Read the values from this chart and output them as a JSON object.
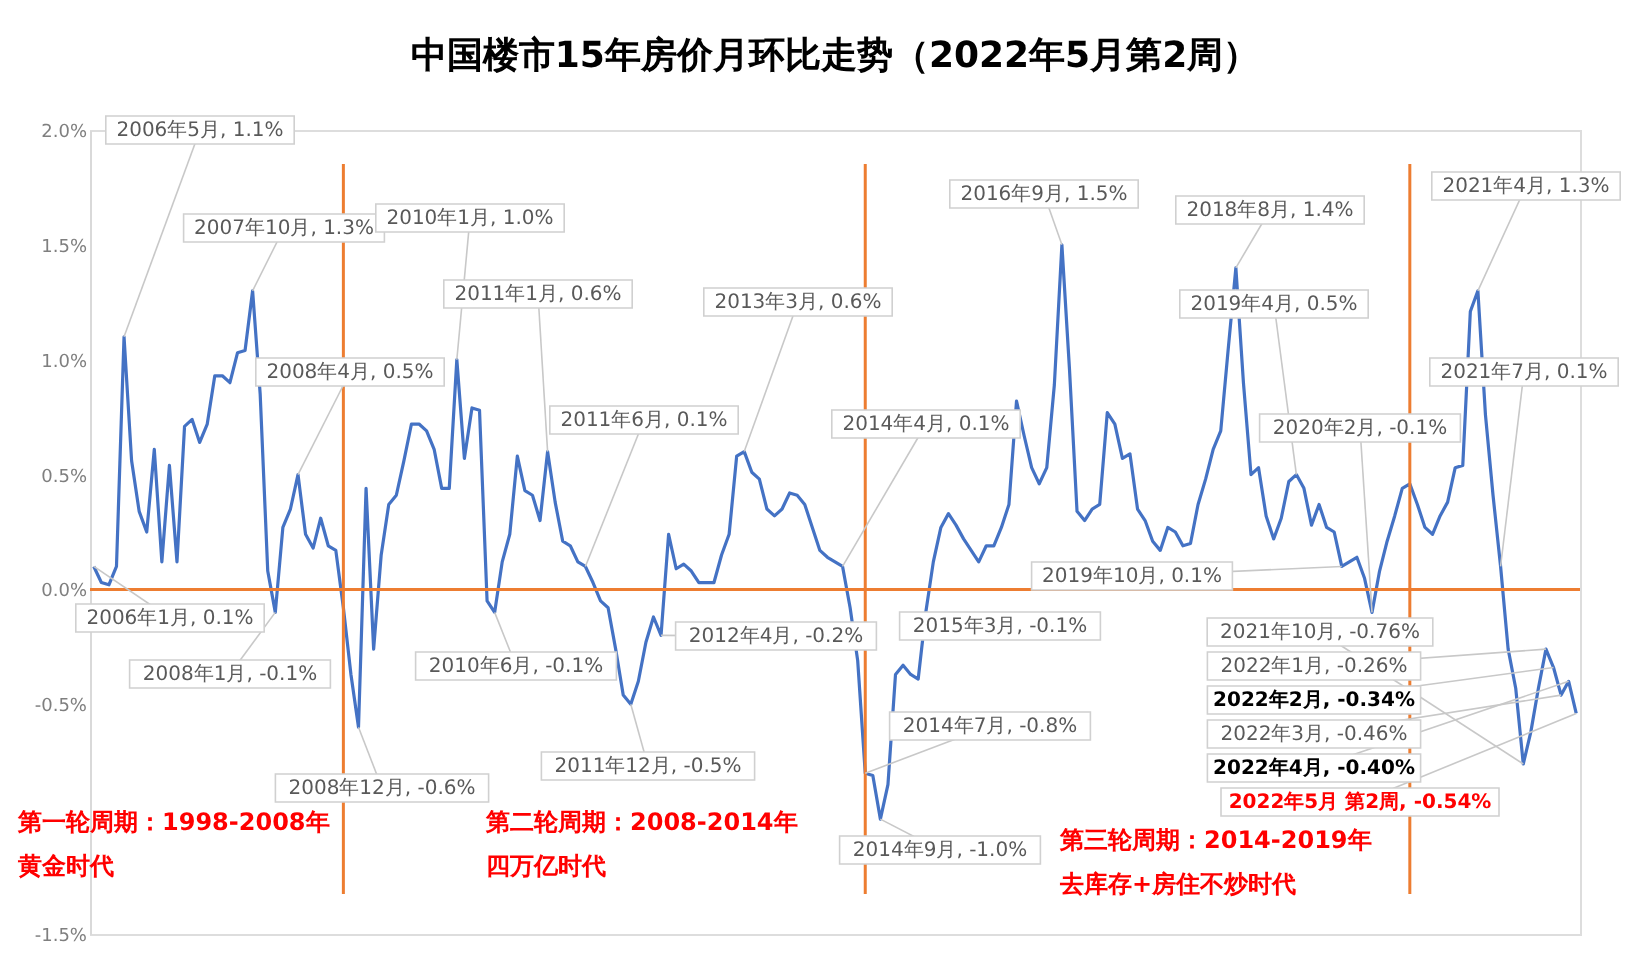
{
  "chart_data": {
    "type": "line",
    "title": "中国楼市15年房价月环比走势（2022年5月第2周）",
    "categories": [
      null,
      null,
      null,
      null,
      null,
      null,
      null,
      null,
      null,
      null,
      null,
      null,
      null,
      null,
      null,
      null,
      null,
      null,
      null,
      null,
      null,
      null,
      null,
      null,
      null,
      null,
      null,
      null,
      null,
      null,
      null,
      null,
      null,
      null,
      null,
      null,
      null,
      null,
      null,
      null,
      null,
      null,
      null,
      null,
      null,
      null,
      null,
      null,
      null,
      null,
      null,
      null,
      null,
      null,
      null,
      null,
      null,
      null,
      null,
      null,
      null,
      null,
      null,
      null,
      null,
      null,
      null,
      null,
      null,
      null,
      null,
      null,
      null,
      null,
      null,
      null,
      null,
      null,
      null,
      null,
      null,
      null,
      null,
      null,
      null,
      null,
      null,
      null,
      null,
      null,
      null,
      null,
      null,
      null,
      null,
      null,
      null,
      null,
      null,
      null,
      null,
      null,
      null,
      null,
      null,
      null,
      null,
      null,
      null,
      null,
      null,
      null,
      null,
      null,
      null,
      null,
      null,
      null,
      null,
      null,
      null,
      null,
      null,
      null,
      null,
      null,
      null,
      null,
      null,
      null,
      null,
      null,
      null,
      null,
      null,
      null,
      null,
      null,
      null,
      null,
      null,
      null,
      null,
      null,
      null,
      null,
      null,
      null,
      null,
      null,
      null,
      null,
      null,
      null,
      null,
      null,
      null,
      null,
      null,
      null,
      null,
      null,
      null,
      null,
      null,
      null,
      null,
      null,
      null,
      null,
      null,
      null,
      null,
      null,
      null,
      null,
      null,
      null,
      null,
      null,
      null,
      null,
      null,
      null,
      null,
      null,
      null,
      null,
      null,
      null,
      null,
      null,
      null,
      null,
      null,
      null,
      null
    ],
    "series": [
      {
        "color": "#4472c4",
        "values": [
          0.1,
          0.03,
          0.02,
          0.1,
          1.1,
          0.56,
          0.34,
          0.25,
          0.61,
          0.12,
          0.54,
          0.12,
          0.71,
          0.74,
          0.64,
          0.72,
          0.93,
          0.93,
          0.9,
          1.03,
          1.04,
          1.3,
          0.85,
          0.08,
          -0.1,
          0.27,
          0.35,
          0.5,
          0.24,
          0.18,
          0.31,
          0.19,
          0.17,
          -0.08,
          -0.37,
          -0.6,
          0.44,
          -0.26,
          0.15,
          0.37,
          0.41,
          0.56,
          0.72,
          0.72,
          0.69,
          0.61,
          0.44,
          0.44,
          1.0,
          0.57,
          0.79,
          0.78,
          -0.05,
          -0.1,
          0.12,
          0.24,
          0.58,
          0.43,
          0.41,
          0.3,
          0.6,
          0.38,
          0.21,
          0.19,
          0.12,
          0.1,
          0.03,
          -0.05,
          -0.08,
          -0.26,
          -0.46,
          -0.5,
          -0.4,
          -0.23,
          -0.12,
          -0.2,
          0.24,
          0.09,
          0.11,
          0.08,
          0.03,
          0.03,
          0.03,
          0.15,
          0.24,
          0.58,
          0.6,
          0.51,
          0.48,
          0.35,
          0.32,
          0.35,
          0.42,
          0.41,
          0.37,
          0.27,
          0.17,
          0.14,
          0.12,
          0.1,
          -0.08,
          -0.31,
          -0.8,
          -0.81,
          -1.0,
          -0.85,
          -0.37,
          -0.33,
          -0.37,
          -0.39,
          -0.1,
          0.12,
          0.27,
          0.33,
          0.28,
          0.22,
          0.17,
          0.12,
          0.19,
          0.19,
          0.27,
          0.37,
          0.82,
          0.67,
          0.53,
          0.46,
          0.53,
          0.89,
          1.5,
          0.96,
          0.34,
          0.3,
          0.35,
          0.37,
          0.77,
          0.72,
          0.57,
          0.59,
          0.35,
          0.3,
          0.21,
          0.17,
          0.27,
          0.25,
          0.19,
          0.2,
          0.37,
          0.48,
          0.61,
          0.69,
          1.05,
          1.4,
          0.9,
          0.5,
          0.53,
          0.32,
          0.22,
          0.31,
          0.47,
          0.5,
          0.44,
          0.28,
          0.37,
          0.27,
          0.25,
          0.1,
          0.12,
          0.14,
          0.05,
          -0.1,
          0.08,
          0.21,
          0.32,
          0.44,
          0.46,
          0.37,
          0.27,
          0.24,
          0.32,
          0.38,
          0.53,
          0.54,
          1.21,
          1.3,
          0.76,
          0.41,
          0.1,
          -0.26,
          -0.43,
          -0.76,
          -0.62,
          -0.43,
          -0.26,
          -0.34,
          -0.46,
          -0.4,
          -0.54
        ]
      }
    ],
    "ylim": [
      -1.5,
      2.0
    ],
    "yticks": [
      {
        "value": -1.5,
        "label": "-1.5%"
      },
      {
        "value": -0.5,
        "label": "-0.5%"
      },
      {
        "value": 0,
        "label": "0.0%"
      },
      {
        "value": 0.5,
        "label": "0.5%"
      },
      {
        "value": 1.0,
        "label": "1.0%"
      },
      {
        "value": 1.5,
        "label": "1.5%"
      },
      {
        "value": 2.0,
        "label": "2.0%"
      }
    ],
    "tick_labels": "y",
    "grid": false,
    "marker": "none",
    "line_style": "solid",
    "ref_lines": [
      {
        "axis": "y",
        "value": 0,
        "color": "#ed7d31"
      }
    ],
    "annotations": [
      "2006年5月, 1.1%",
      "2006年1月, 0.1%",
      "2007年10月, 1.3%",
      "2008年4月, 0.5%",
      "2008年1月, -0.1%",
      "2008年12月, -0.6%",
      "2010年1月, 1.0%",
      "2011年1月, 0.6%",
      "2010年6月, -0.1%",
      "2011年6月, 0.1%",
      "2013年3月, 0.6%",
      "2012年4月, -0.2%",
      "2011年12月, -0.5%",
      "2014年4月, 0.1%",
      "2014年7月, -0.8%",
      "2014年9月, -1.0%",
      "2015年3月, -0.1%",
      "2016年9月, 1.5%",
      "2018年8月, 1.4%",
      "2019年4月, 0.5%",
      "2019年10月, 0.1%",
      "2020年2月, -0.1%",
      "2021年4月, 1.3%",
      "2021年7月, 0.1%",
      "2021年10月, -0.76%",
      "2022年1月, -0.26%",
      "2022年2月, -0.34%",
      "2022年3月, -0.46%",
      "2022年4月, -0.40%",
      "2022年5月 第2周, -0.54%",
      "第一轮周期：1998-2008年",
      "黄金时代",
      "第二轮周期：2008-2014年",
      "四万亿时代",
      "第三轮周期：2014-2019年",
      "去库存+房住不炒时代"
    ]
  }
}
